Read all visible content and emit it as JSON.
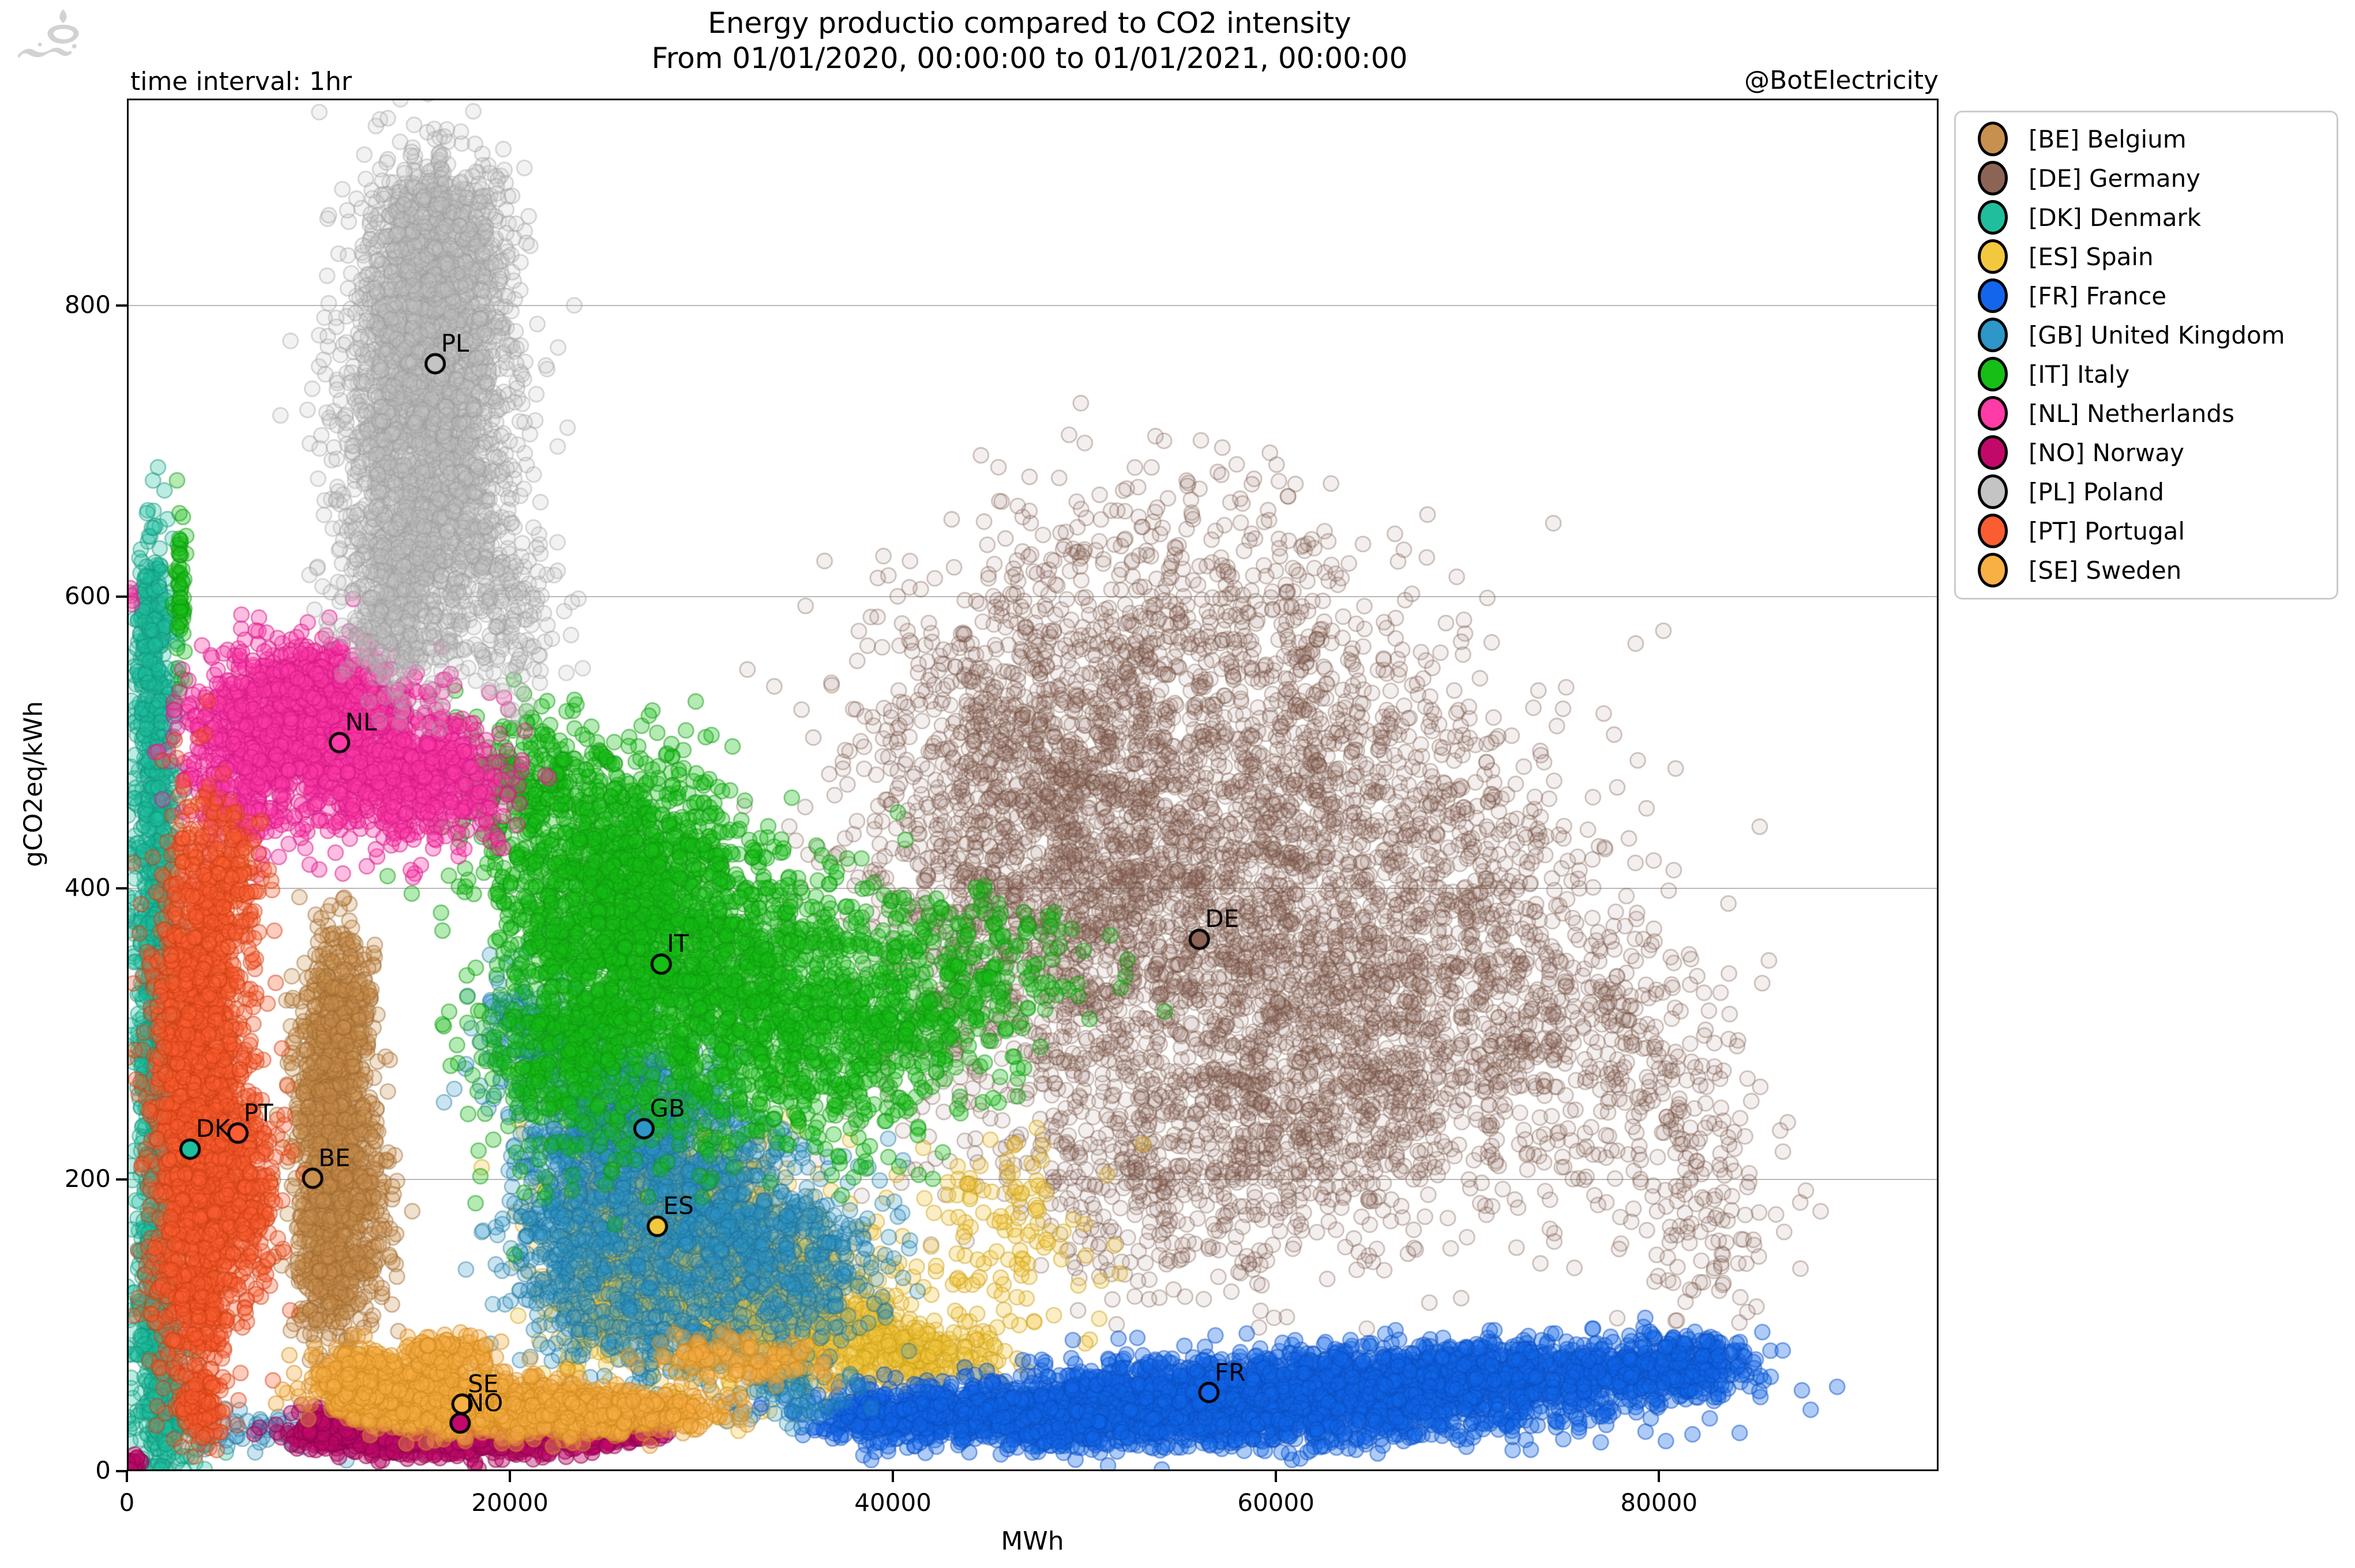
{
  "header": {
    "time_interval_label": "time interval: 1hr",
    "watermark_handle": "@BotElectricity",
    "logo_name": "fars-news-agency-watermark"
  },
  "axes": {
    "xlabel": "MWh",
    "ylabel": "gCO2eq/kWh",
    "x_ticks": [
      0,
      20000,
      40000,
      60000,
      80000
    ],
    "y_ticks": [
      0,
      200,
      400,
      600,
      800
    ],
    "x_range": [
      0,
      94600
    ],
    "y_range": [
      0,
      942
    ],
    "grid": "horizontal-only",
    "grid_color": "#b9b9b9",
    "legend_position": "outside-upper-right"
  },
  "chart_data": {
    "type": "scatter",
    "title": "Energy productio compared to CO2 intensity",
    "subtitle": "From 01/01/2020, 00:00:00 to 01/01/2021, 00:00:00",
    "xlabel": "MWh",
    "ylabel": "gCO2eq/kWh",
    "x_range": [
      0,
      94600
    ],
    "y_range": [
      0,
      942
    ],
    "point_radius_px": 13,
    "series": [
      {
        "code": "BE",
        "name": "Belgium",
        "legend_label": "[BE] Belgium",
        "color": "#C8904F",
        "edge": "#A06A2F",
        "fill_alpha": 0.28,
        "stroke_alpha": 0.5,
        "centroid": {
          "x": 9700,
          "y": 201
        },
        "clusters": [
          [
            10600,
            280,
            900,
            40,
            450
          ],
          [
            10900,
            215,
            1100,
            40,
            550
          ],
          [
            10600,
            140,
            900,
            30,
            350
          ],
          [
            11500,
            330,
            700,
            25,
            150
          ],
          [
            12800,
            170,
            700,
            35,
            100
          ]
        ]
      },
      {
        "code": "DE",
        "name": "Germany",
        "legend_label": "[DE] Germany",
        "color": "#8C6456",
        "edge": "#74503F",
        "fill_alpha": 0.1,
        "stroke_alpha": 0.36,
        "centroid": {
          "x": 56000,
          "y": 365
        },
        "clusters": [
          [
            50000,
            430,
            5500,
            65,
            1100
          ],
          [
            58000,
            360,
            6500,
            75,
            1300
          ],
          [
            64000,
            270,
            5500,
            55,
            750
          ],
          [
            55000,
            205,
            5500,
            42,
            500
          ],
          [
            47000,
            520,
            4500,
            50,
            500
          ],
          [
            57000,
            555,
            5500,
            45,
            400
          ],
          [
            69000,
            400,
            4500,
            60,
            450
          ],
          [
            74000,
            310,
            3800,
            55,
            280
          ],
          [
            63000,
            480,
            5000,
            50,
            350
          ],
          [
            54000,
            625,
            5000,
            38,
            180
          ],
          [
            44000,
            350,
            3500,
            60,
            350
          ],
          [
            80000,
            255,
            2600,
            55,
            180
          ],
          [
            83000,
            180,
            1800,
            35,
            90
          ]
        ]
      },
      {
        "code": "DK",
        "name": "Denmark",
        "legend_label": "[DK] Denmark",
        "color": "#1FBF9E",
        "edge": "#12967B",
        "fill_alpha": 0.3,
        "stroke_alpha": 0.5,
        "centroid": {
          "x": 3300,
          "y": 221
        },
        "clusters": [
          [
            1500,
            430,
            550,
            85,
            550
          ],
          [
            1600,
            260,
            600,
            80,
            550
          ],
          [
            1700,
            90,
            650,
            42,
            400
          ],
          [
            1300,
            565,
            400,
            40,
            220
          ],
          [
            2500,
            35,
            1100,
            14,
            130
          ]
        ]
      },
      {
        "code": "ES",
        "name": "Spain",
        "legend_label": "[ES] Spain",
        "color": "#F2C83E",
        "edge": "#CDA216",
        "fill_alpha": 0.3,
        "stroke_alpha": 0.5,
        "centroid": {
          "x": 27700,
          "y": 168
        },
        "clusters": [
          [
            28000,
            175,
            2800,
            38,
            850
          ],
          [
            32500,
            125,
            3200,
            30,
            700
          ],
          [
            37000,
            92,
            2600,
            20,
            400
          ],
          [
            42000,
            80,
            2200,
            12,
            180
          ],
          [
            25000,
            120,
            1800,
            30,
            250
          ],
          [
            45500,
            160,
            2500,
            35,
            130
          ]
        ]
      },
      {
        "code": "FR",
        "name": "France",
        "legend_label": "[FR] France",
        "color": "#1366EB",
        "edge": "#0B4FC2",
        "fill_alpha": 0.34,
        "stroke_alpha": 0.52,
        "centroid": {
          "x": 56500,
          "y": 54
        },
        "clusters": [
          [
            47000,
            40,
            4500,
            11,
            900
          ],
          [
            56000,
            50,
            5000,
            13,
            1100
          ],
          [
            65000,
            58,
            5000,
            13,
            1000
          ],
          [
            74000,
            66,
            4500,
            12,
            750
          ],
          [
            81000,
            72,
            2200,
            10,
            300
          ],
          [
            40000,
            38,
            2500,
            10,
            250
          ],
          [
            60000,
            30,
            8000,
            8,
            400
          ]
        ]
      },
      {
        "code": "GB",
        "name": "United Kingdom",
        "legend_label": "[GB] United Kingdom",
        "color": "#2E96C8",
        "edge": "#1D7198",
        "fill_alpha": 0.26,
        "stroke_alpha": 0.46,
        "centroid": {
          "x": 27000,
          "y": 235
        },
        "clusters": [
          [
            25500,
            245,
            2700,
            38,
            850
          ],
          [
            29500,
            185,
            3200,
            38,
            750
          ],
          [
            34500,
            140,
            2800,
            28,
            400
          ],
          [
            23000,
            150,
            1800,
            32,
            300
          ],
          [
            28000,
            95,
            3000,
            18,
            200
          ],
          [
            21000,
            300,
            1500,
            25,
            150
          ],
          [
            34000,
            55,
            1800,
            12,
            75
          ],
          [
            7500,
            30,
            2200,
            8,
            60
          ]
        ]
      },
      {
        "code": "IT",
        "name": "Italy",
        "legend_label": "[IT] Italy",
        "color": "#16BE16",
        "edge": "#0E9A0E",
        "fill_alpha": 0.32,
        "stroke_alpha": 0.52,
        "centroid": {
          "x": 27900,
          "y": 348
        },
        "clusters": [
          [
            25500,
            415,
            3200,
            38,
            950
          ],
          [
            29500,
            345,
            4200,
            48,
            1200
          ],
          [
            35500,
            300,
            3800,
            42,
            650
          ],
          [
            23500,
            300,
            2600,
            45,
            550
          ],
          [
            41000,
            330,
            3000,
            38,
            250
          ],
          [
            46000,
            350,
            2500,
            30,
            100
          ],
          [
            21000,
            470,
            2000,
            25,
            250
          ],
          [
            2800,
            600,
            150,
            30,
            60
          ]
        ]
      },
      {
        "code": "NL",
        "name": "Netherlands",
        "legend_label": "[NL] Netherlands",
        "color": "#FF3BA7",
        "edge": "#D41A85",
        "fill_alpha": 0.34,
        "stroke_alpha": 0.55,
        "centroid": {
          "x": 11100,
          "y": 500
        },
        "clusters": [
          [
            8500,
            515,
            2300,
            26,
            750
          ],
          [
            12500,
            490,
            2600,
            26,
            750
          ],
          [
            6000,
            478,
            1400,
            30,
            350
          ],
          [
            16500,
            470,
            1800,
            22,
            250
          ],
          [
            10000,
            545,
            2000,
            15,
            200
          ],
          [
            200,
            600,
            60,
            5,
            5
          ]
        ]
      },
      {
        "code": "NO",
        "name": "Norway",
        "legend_label": "[NO] Norway",
        "color": "#C2096A",
        "edge": "#8F0550",
        "fill_alpha": 0.42,
        "stroke_alpha": 0.6,
        "centroid": {
          "x": 17400,
          "y": 33
        },
        "clusters": [
          [
            13500,
            27,
            2000,
            7,
            600
          ],
          [
            19000,
            25,
            2300,
            7,
            650
          ],
          [
            24000,
            28,
            1600,
            6,
            350
          ],
          [
            10400,
            30,
            700,
            6,
            150
          ],
          [
            26800,
            30,
            600,
            5,
            100
          ],
          [
            250,
            5,
            200,
            4,
            30
          ]
        ]
      },
      {
        "code": "PL",
        "name": "Poland",
        "legend_label": "[PL] Poland",
        "color": "#C4C4C4",
        "edge": "#9B9B9B",
        "fill_alpha": 0.22,
        "stroke_alpha": 0.42,
        "centroid": {
          "x": 16100,
          "y": 760
        },
        "clusters": [
          [
            16000,
            810,
            2100,
            42,
            1100
          ],
          [
            15500,
            730,
            2300,
            45,
            1000
          ],
          [
            15000,
            650,
            1900,
            38,
            600
          ],
          [
            14500,
            590,
            1600,
            28,
            350
          ],
          [
            18500,
            640,
            1200,
            45,
            180
          ],
          [
            20500,
            585,
            1200,
            35,
            110
          ],
          [
            16500,
            868,
            1500,
            18,
            180
          ]
        ]
      },
      {
        "code": "PT",
        "name": "Portugal",
        "legend_label": "[PT] Portugal",
        "color": "#FB5D32",
        "edge": "#CE3F14",
        "fill_alpha": 0.32,
        "stroke_alpha": 0.52,
        "centroid": {
          "x": 5800,
          "y": 232
        },
        "clusters": [
          [
            3800,
            310,
            1200,
            65,
            750
          ],
          [
            4400,
            215,
            1400,
            55,
            700
          ],
          [
            3600,
            120,
            1100,
            32,
            350
          ],
          [
            4900,
            395,
            1100,
            35,
            250
          ],
          [
            2800,
            250,
            800,
            80,
            300
          ],
          [
            6500,
            180,
            900,
            35,
            150
          ],
          [
            3800,
            45,
            700,
            12,
            120
          ]
        ]
      },
      {
        "code": "SE",
        "name": "Sweden",
        "legend_label": "[SE] Sweden",
        "color": "#F8B045",
        "edge": "#D18A1E",
        "fill_alpha": 0.36,
        "stroke_alpha": 0.55,
        "centroid": {
          "x": 17500,
          "y": 46
        },
        "clusters": [
          [
            14500,
            52,
            2000,
            11,
            750
          ],
          [
            19500,
            45,
            2300,
            9,
            700
          ],
          [
            24000,
            40,
            1800,
            8,
            350
          ],
          [
            12000,
            62,
            1200,
            10,
            250
          ],
          [
            16500,
            80,
            1300,
            7,
            150
          ],
          [
            28500,
            42,
            1500,
            7,
            150
          ],
          [
            31500,
            78,
            2200,
            8,
            120
          ]
        ]
      }
    ]
  }
}
